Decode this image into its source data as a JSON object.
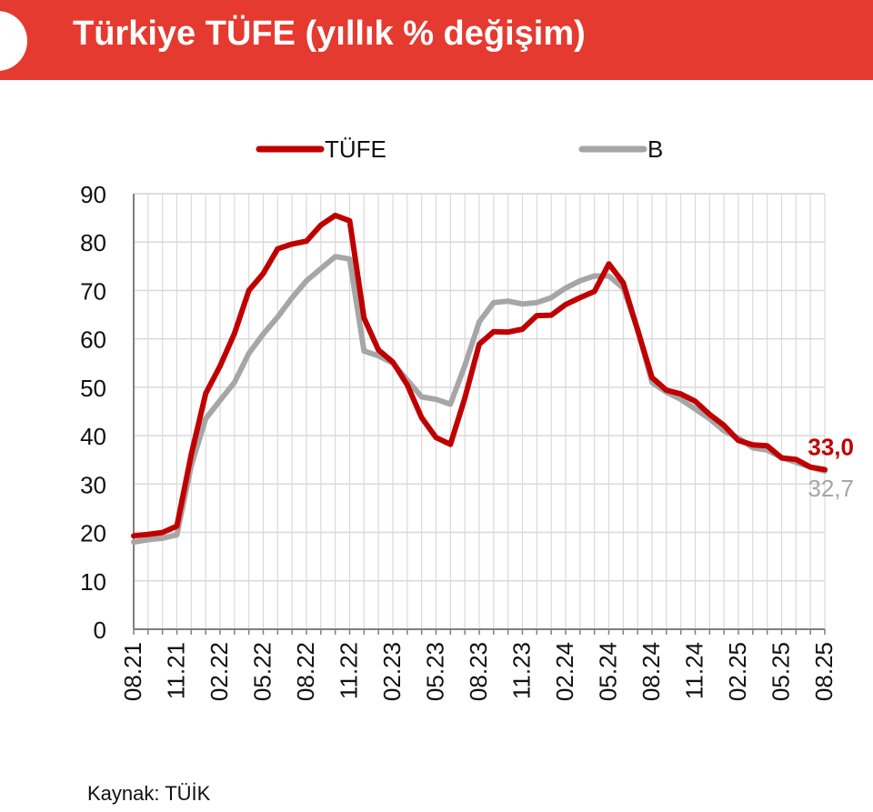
{
  "header": {
    "title": "Türkiye TÜFE (yıllık % değişim)",
    "band_color": "#e53a2f"
  },
  "source": "Kaynak: TÜİK",
  "chart_data": {
    "type": "line",
    "title": "Türkiye TÜFE (yıllık % değişim)",
    "xlabel": "",
    "ylabel": "",
    "ylim": [
      0,
      90
    ],
    "yticks": [
      0,
      10,
      20,
      30,
      40,
      50,
      60,
      70,
      80,
      90
    ],
    "grid": true,
    "legend_position": "top",
    "x": [
      "08.21",
      "09.21",
      "10.21",
      "11.21",
      "12.21",
      "01.22",
      "02.22",
      "03.22",
      "04.22",
      "05.22",
      "06.22",
      "07.22",
      "08.22",
      "09.22",
      "10.22",
      "11.22",
      "12.22",
      "01.23",
      "02.23",
      "03.23",
      "04.23",
      "05.23",
      "06.23",
      "07.23",
      "08.23",
      "09.23",
      "10.23",
      "11.23",
      "12.23",
      "01.24",
      "02.24",
      "03.24",
      "04.24",
      "05.24",
      "06.24",
      "07.24",
      "08.24",
      "09.24",
      "10.24",
      "11.24",
      "12.24",
      "01.25",
      "02.25",
      "03.25",
      "04.25",
      "05.25",
      "06.25",
      "07.25",
      "08.25"
    ],
    "xtick_labels": [
      "08.21",
      "11.21",
      "02.22",
      "05.22",
      "08.22",
      "11.22",
      "02.23",
      "05.23",
      "08.23",
      "11.23",
      "02.24",
      "05.24",
      "08.24",
      "11.24",
      "02.25",
      "05.25",
      "08.25"
    ],
    "series": [
      {
        "name": "TÜFE",
        "color": "#c00000",
        "end_label": "33,0",
        "values": [
          19.3,
          19.6,
          20.0,
          21.3,
          36.1,
          48.7,
          54.4,
          61.1,
          70.0,
          73.5,
          78.6,
          79.6,
          80.2,
          83.5,
          85.5,
          84.4,
          64.3,
          57.7,
          55.2,
          50.5,
          43.7,
          39.6,
          38.2,
          47.8,
          58.9,
          61.5,
          61.4,
          62.0,
          64.8,
          64.9,
          67.1,
          68.5,
          69.8,
          75.5,
          71.6,
          61.8,
          52.0,
          49.4,
          48.6,
          47.1,
          44.4,
          42.1,
          39.0,
          38.1,
          37.9,
          35.4,
          35.1,
          33.5,
          33.0
        ]
      },
      {
        "name": "B",
        "color": "#a6a6a6",
        "end_label": "32,7",
        "values": [
          18.0,
          18.5,
          18.8,
          19.5,
          33.8,
          43.5,
          47.3,
          51.0,
          57.0,
          61.0,
          64.5,
          68.5,
          72.0,
          74.5,
          77.0,
          76.5,
          57.5,
          56.5,
          55.0,
          51.5,
          48.0,
          47.5,
          46.5,
          54.5,
          63.5,
          67.5,
          67.8,
          67.2,
          67.5,
          68.5,
          70.5,
          72.0,
          73.0,
          73.0,
          70.5,
          62.0,
          51.0,
          49.0,
          47.5,
          45.5,
          43.5,
          41.0,
          39.5,
          37.5,
          37.0,
          35.5,
          34.5,
          33.5,
          32.7
        ]
      }
    ]
  }
}
